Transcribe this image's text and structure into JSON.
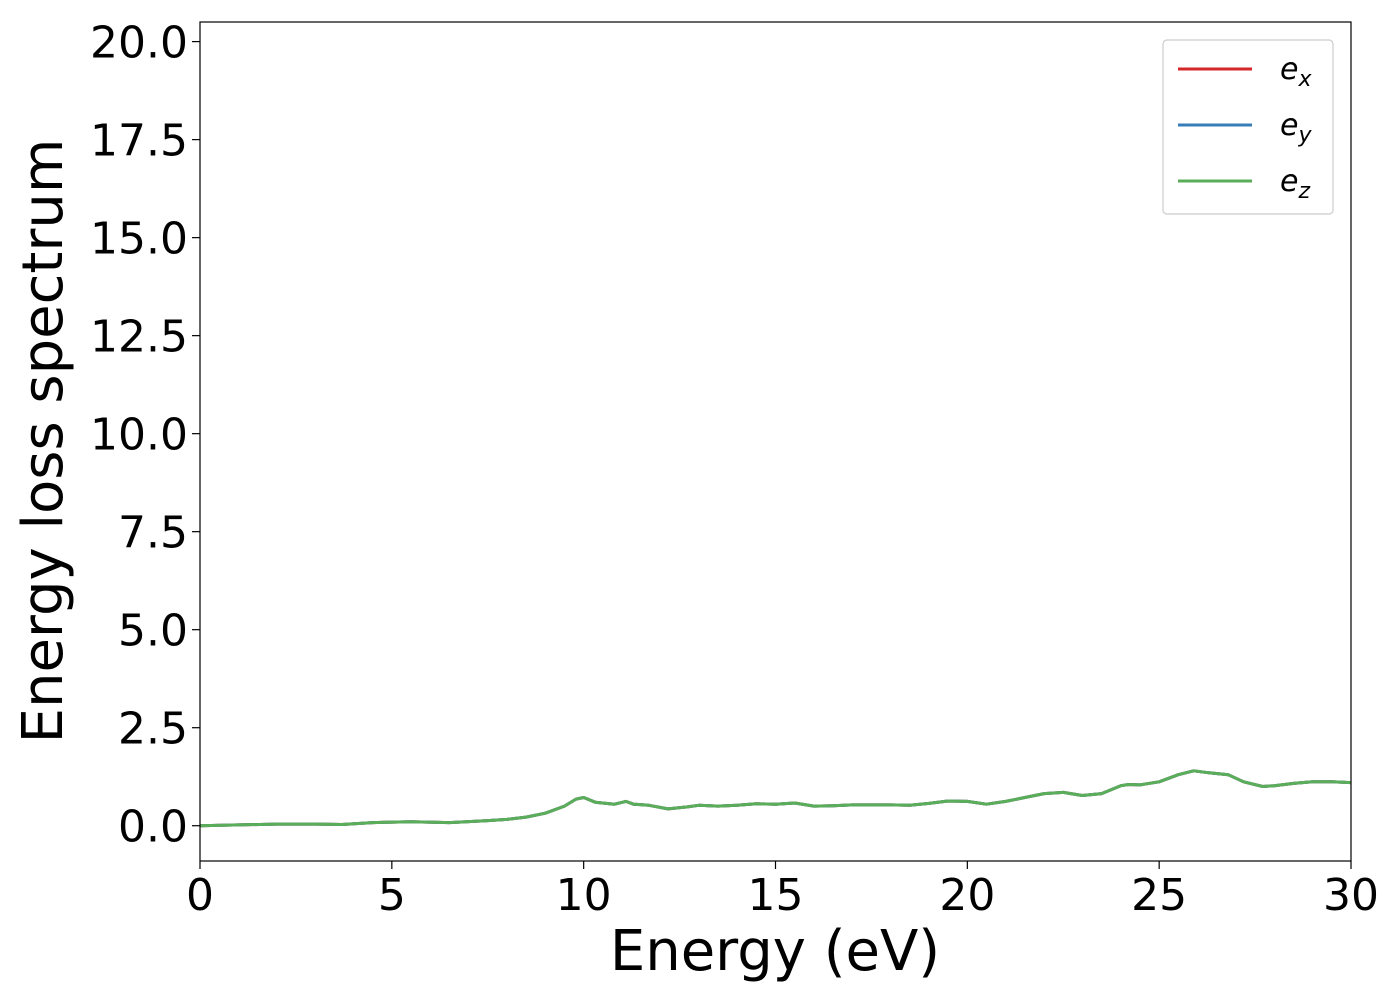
{
  "chart_data": {
    "type": "line",
    "xlabel": "Energy (eV)",
    "ylabel": "Energy loss spectrum",
    "xlim": [
      0,
      30
    ],
    "ylim": [
      -0.9,
      20.5
    ],
    "x_ticks": [
      "0",
      "5",
      "10",
      "15",
      "20",
      "25",
      "30"
    ],
    "x_tick_values": [
      0,
      5,
      10,
      15,
      20,
      25,
      30
    ],
    "y_ticks": [
      "0.0",
      "2.5",
      "5.0",
      "7.5",
      "10.0",
      "12.5",
      "15.0",
      "17.5",
      "20.0"
    ],
    "y_tick_values": [
      0,
      2.5,
      5,
      7.5,
      10,
      12.5,
      15,
      17.5,
      20
    ],
    "grid": false,
    "legend_position": "top-right",
    "x": [
      0,
      1,
      2,
      3,
      3.7,
      4.5,
      5.5,
      6.5,
      7.5,
      8,
      8.5,
      9,
      9.5,
      9.8,
      10,
      10.3,
      10.8,
      11.1,
      11.3,
      11.7,
      12.2,
      12.7,
      13,
      13.5,
      14,
      14.5,
      15,
      15.5,
      16,
      16.5,
      17,
      17.5,
      18,
      18.5,
      19,
      19.5,
      20,
      20.5,
      21,
      21.5,
      22,
      22.5,
      23,
      23.5,
      24,
      24.2,
      24.5,
      25,
      25.5,
      25.9,
      26.3,
      26.8,
      27.2,
      27.7,
      28,
      28.5,
      29,
      29.5,
      30
    ],
    "series": [
      {
        "name": "e_x",
        "legend_base": "e",
        "legend_sub": "x",
        "color": "#d62728",
        "values": [
          0.0,
          0.02,
          0.04,
          0.04,
          0.03,
          0.08,
          0.1,
          0.08,
          0.13,
          0.16,
          0.22,
          0.32,
          0.5,
          0.68,
          0.72,
          0.6,
          0.55,
          0.62,
          0.55,
          0.52,
          0.43,
          0.48,
          0.52,
          0.5,
          0.52,
          0.56,
          0.55,
          0.58,
          0.5,
          0.51,
          0.53,
          0.53,
          0.53,
          0.52,
          0.57,
          0.63,
          0.62,
          0.55,
          0.62,
          0.72,
          0.82,
          0.85,
          0.77,
          0.82,
          1.02,
          1.05,
          1.04,
          1.12,
          1.3,
          1.4,
          1.35,
          1.3,
          1.12,
          1.0,
          1.02,
          1.08,
          1.12,
          1.12,
          1.1
        ]
      },
      {
        "name": "e_y",
        "legend_base": "e",
        "legend_sub": "y",
        "color": "#377eb8",
        "values": [
          0.0,
          0.02,
          0.04,
          0.04,
          0.03,
          0.08,
          0.1,
          0.08,
          0.13,
          0.16,
          0.22,
          0.32,
          0.5,
          0.68,
          0.72,
          0.6,
          0.55,
          0.62,
          0.55,
          0.52,
          0.43,
          0.48,
          0.52,
          0.5,
          0.52,
          0.56,
          0.55,
          0.58,
          0.5,
          0.51,
          0.53,
          0.53,
          0.53,
          0.52,
          0.57,
          0.63,
          0.62,
          0.55,
          0.62,
          0.72,
          0.82,
          0.85,
          0.77,
          0.82,
          1.02,
          1.05,
          1.04,
          1.12,
          1.3,
          1.4,
          1.35,
          1.3,
          1.12,
          1.0,
          1.02,
          1.08,
          1.12,
          1.12,
          1.1
        ]
      },
      {
        "name": "e_z",
        "legend_base": "e",
        "legend_sub": "z",
        "color": "#5aae5a",
        "values": [
          0.0,
          0.02,
          0.04,
          0.04,
          0.03,
          0.08,
          0.1,
          0.08,
          0.13,
          0.16,
          0.22,
          0.32,
          0.5,
          0.68,
          0.72,
          0.6,
          0.55,
          0.62,
          0.55,
          0.52,
          0.43,
          0.48,
          0.52,
          0.5,
          0.52,
          0.56,
          0.55,
          0.58,
          0.5,
          0.51,
          0.53,
          0.53,
          0.53,
          0.52,
          0.57,
          0.63,
          0.62,
          0.55,
          0.62,
          0.72,
          0.82,
          0.85,
          0.77,
          0.82,
          1.02,
          1.05,
          1.04,
          1.12,
          1.3,
          1.4,
          1.35,
          1.3,
          1.12,
          1.0,
          1.02,
          1.08,
          1.12,
          1.12,
          1.1
        ]
      }
    ]
  }
}
